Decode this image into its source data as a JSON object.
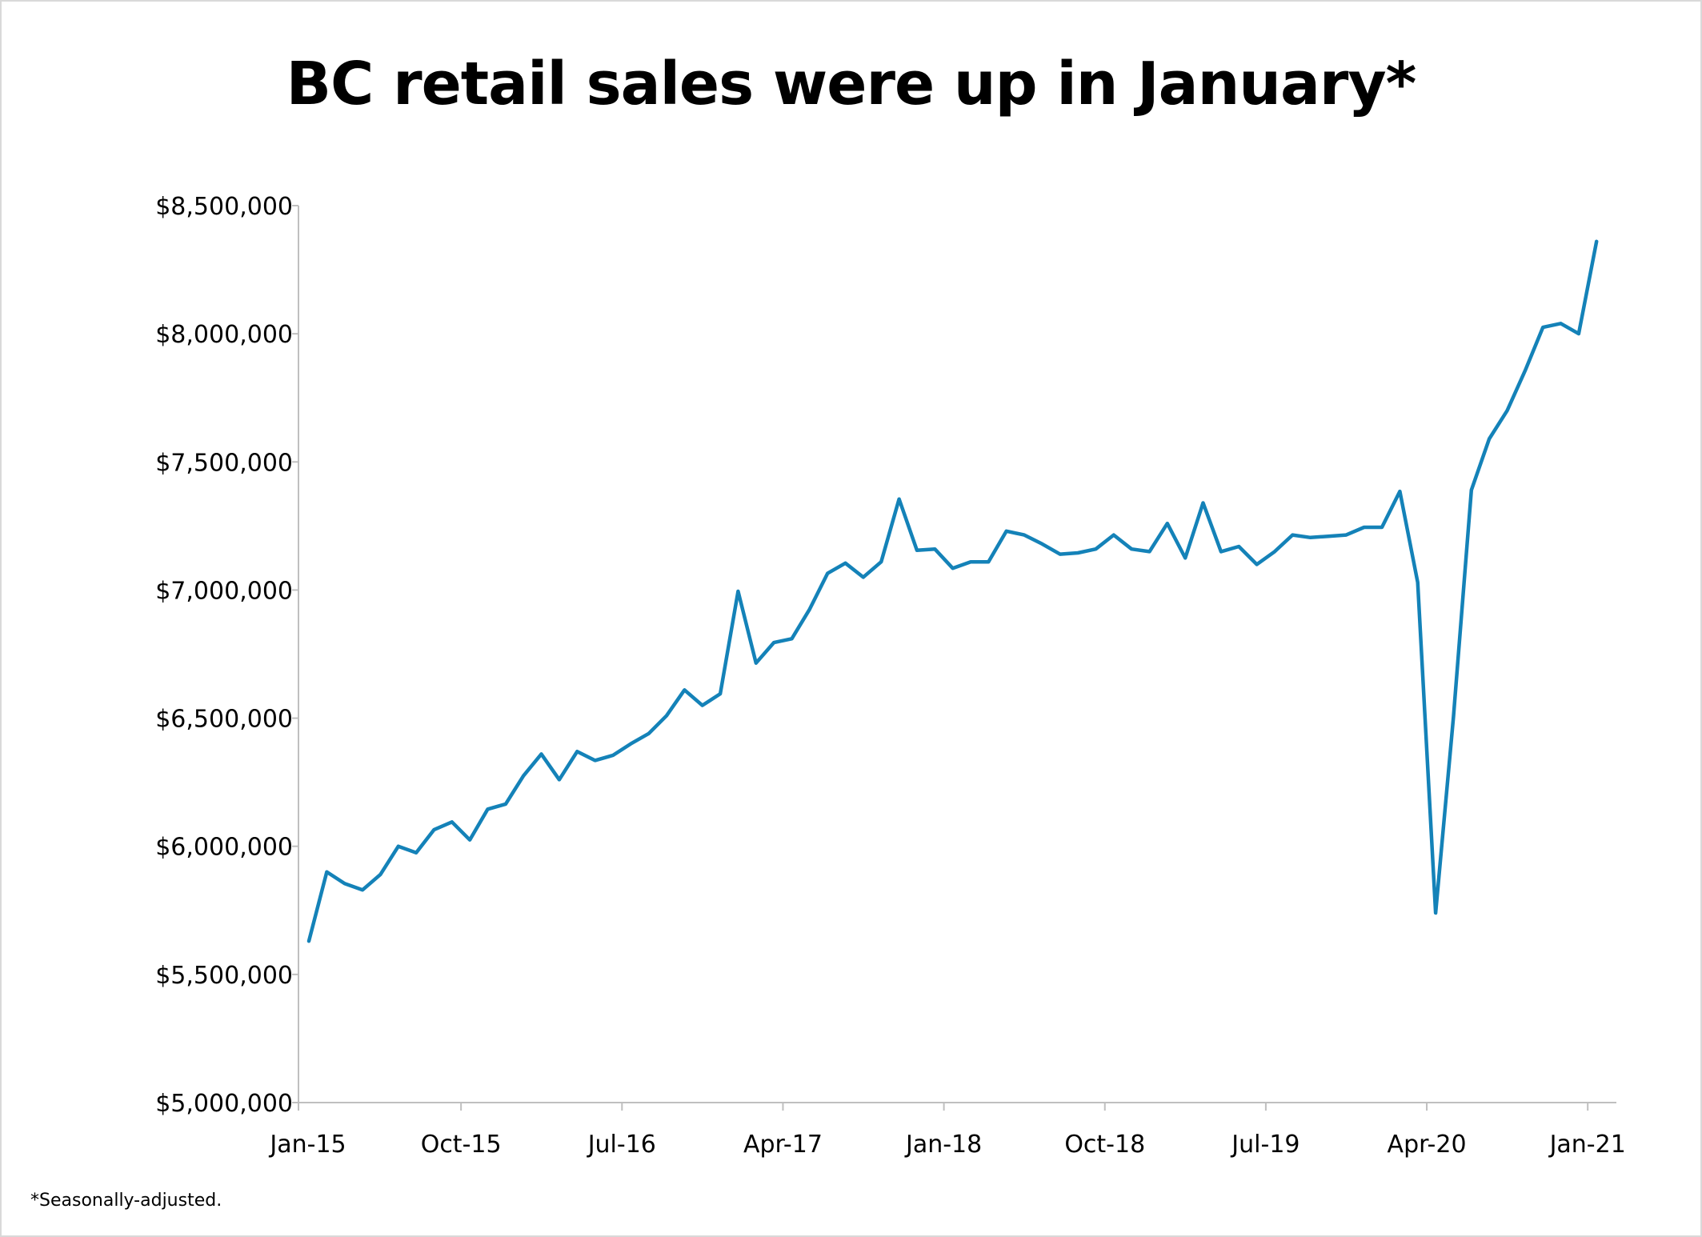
{
  "chart_data": {
    "type": "line",
    "title": "BC retail sales were up in January*",
    "footnote": "*Seasonally-adjusted.",
    "xlabel": "",
    "ylabel": "",
    "ylim": [
      5000000,
      8500000
    ],
    "y_ticks": [
      "$5,000,000",
      "$5,500,000",
      "$6,000,000",
      "$6,500,000",
      "$7,000,000",
      "$7,500,000",
      "$8,000,000",
      "$8,500,000"
    ],
    "y_tick_values": [
      5000000,
      5500000,
      6000000,
      6500000,
      7000000,
      7500000,
      8000000,
      8500000
    ],
    "x_ticks": [
      "Jan-15",
      "Oct-15",
      "Jul-16",
      "Apr-17",
      "Jan-18",
      "Oct-18",
      "Jul-19",
      "Apr-20",
      "Jan-21"
    ],
    "x_tick_months": [
      0,
      9,
      18,
      27,
      36,
      45,
      54,
      63,
      72
    ],
    "grid": false,
    "legend": "none",
    "line_color": "#1482b8",
    "series": [
      {
        "start": "Jan-15",
        "frequency": "monthly",
        "values": [
          5630000,
          5900000,
          5855000,
          5830000,
          5890000,
          6000000,
          5975000,
          6065000,
          6095000,
          6025000,
          6145000,
          6165000,
          6275000,
          6360000,
          6260000,
          6370000,
          6335000,
          6355000,
          6400000,
          6440000,
          6510000,
          6610000,
          6550000,
          6595000,
          6995000,
          6715000,
          6795000,
          6810000,
          6925000,
          7065000,
          7105000,
          7050000,
          7110000,
          7355000,
          7155000,
          7160000,
          7085000,
          7110000,
          7110000,
          7230000,
          7215000,
          7180000,
          7140000,
          7145000,
          7160000,
          7215000,
          7160000,
          7150000,
          7260000,
          7125000,
          7340000,
          7150000,
          7170000,
          7100000,
          7150000,
          7215000,
          7205000,
          7210000,
          7215000,
          7245000,
          7245000,
          7385000,
          7030000,
          5740000,
          6505000,
          7390000,
          7590000,
          7700000,
          7855000,
          8025000,
          8040000,
          8000000,
          8360000
        ]
      }
    ]
  }
}
